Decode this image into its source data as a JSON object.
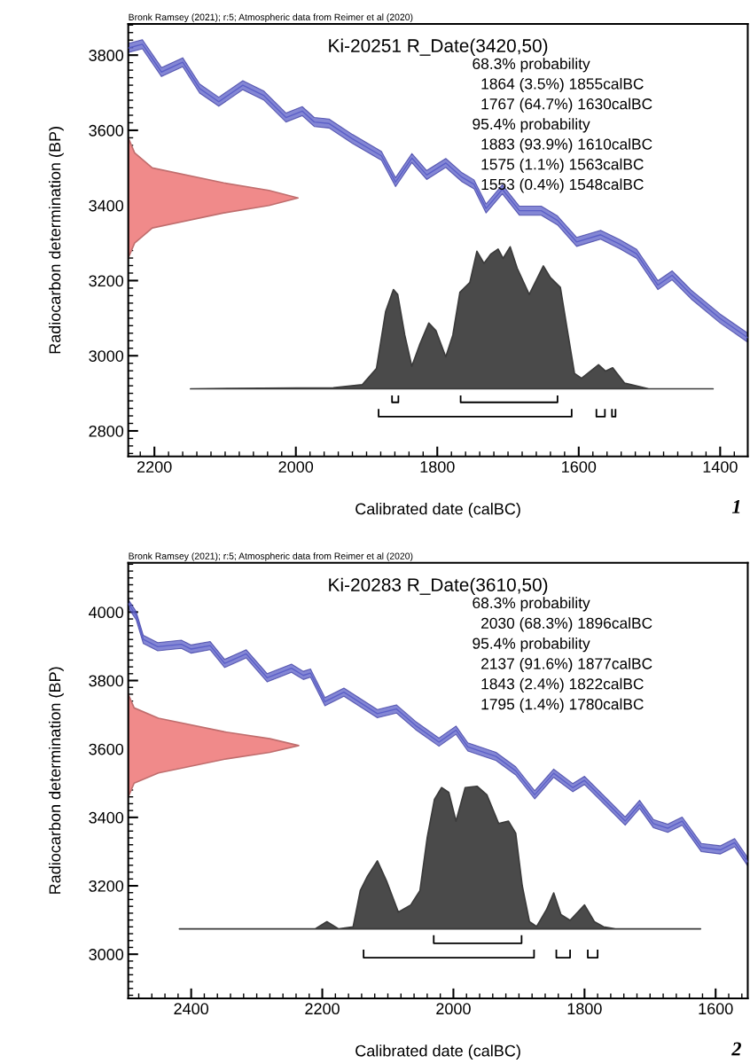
{
  "chart_data": [
    {
      "type": "line",
      "title": "Ki-20251 R_Date(3420,50)",
      "xlabel": "Calibrated date (calBC)",
      "ylabel": "Radiocarbon determination (BP)",
      "annotations": [
        "Bronk Ramsey (2021); r:5; Atmospheric data from Reimer et al (2020)",
        "68.3% probability",
        "  1864 (3.5%) 1855calBC",
        "  1767 (64.7%) 1630calBC",
        "95.4% probability",
        "  1883 (93.9%) 1610calBC",
        "  1575 (1.1%) 1563calBC",
        "  1553 (0.4%) 1548calBC",
        "1"
      ],
      "xlim": [
        2237,
        1361
      ],
      "xticks": [
        2200,
        2000,
        1800,
        1600,
        1400
      ],
      "ylim": [
        2732,
        3883
      ],
      "yticks": [
        2800,
        3000,
        3200,
        3400,
        3600,
        3800
      ],
      "grid": false,
      "legend": false,
      "series": [
        {
          "color": "#5b5fc7",
          "x": [
            2237,
            2217,
            2190,
            2160,
            2136,
            2109,
            2075,
            2045,
            2014,
            1991,
            1974,
            1953,
            1920,
            1879,
            1859,
            1836,
            1815,
            1788,
            1765,
            1748,
            1731,
            1708,
            1684,
            1653,
            1630,
            1603,
            1569,
            1542,
            1518,
            1488,
            1468,
            1441,
            1400,
            1361
          ],
          "values": [
            3819,
            3829,
            3755,
            3781,
            3711,
            3676,
            3720,
            3692,
            3634,
            3651,
            3622,
            3618,
            3577,
            3532,
            3462,
            3526,
            3481,
            3513,
            3475,
            3456,
            3392,
            3443,
            3386,
            3386,
            3360,
            3303,
            3322,
            3297,
            3271,
            3188,
            3214,
            3163,
            3099,
            3048
          ],
          "lower": [
            3807,
            3817,
            3743,
            3769,
            3699,
            3664,
            3708,
            3680,
            3622,
            3639,
            3610,
            3606,
            3565,
            3520,
            3450,
            3514,
            3469,
            3501,
            3463,
            3444,
            3380,
            3431,
            3374,
            3374,
            3348,
            3291,
            3310,
            3285,
            3259,
            3176,
            3202,
            3151,
            3087,
            3036
          ],
          "upper": [
            3831,
            3841,
            3767,
            3793,
            3723,
            3688,
            3732,
            3704,
            3646,
            3663,
            3634,
            3630,
            3589,
            3544,
            3474,
            3538,
            3493,
            3525,
            3487,
            3468,
            3404,
            3455,
            3398,
            3398,
            3372,
            3315,
            3334,
            3309,
            3283,
            3200,
            3226,
            3175,
            3111,
            3060
          ]
        },
        {
          "type": "area",
          "color": "#f08a8a",
          "values": [
            3580,
            3540,
            3500,
            3460,
            3440,
            3420,
            3400,
            3380,
            3340,
            3300,
            3260
          ],
          "x": [
            2237,
            2228,
            2203,
            2102,
            2038,
            1997,
            2038,
            2102,
            2203,
            2228,
            2237
          ]
        },
        {
          "type": "area",
          "color": "#4a4a4a",
          "x": [
            2149,
            1947,
            1906,
            1886,
            1873,
            1862,
            1856,
            1846,
            1836,
            1825,
            1812,
            1802,
            1788,
            1778,
            1768,
            1754,
            1744,
            1734,
            1724,
            1714,
            1707,
            1697,
            1687,
            1670,
            1650,
            1640,
            1626,
            1616,
            1606,
            1596,
            1572,
            1562,
            1552,
            1535,
            1501,
            1410
          ],
          "values": [
            2912,
            2915,
            2923,
            2966,
            3118,
            3176,
            3163,
            3055,
            2972,
            3029,
            3087,
            3067,
            2997,
            3055,
            3169,
            3195,
            3278,
            3246,
            3271,
            3284,
            3259,
            3290,
            3233,
            3163,
            3239,
            3208,
            3182,
            3067,
            2953,
            2940,
            2976,
            2959,
            2968,
            2927,
            2912,
            2912
          ]
        },
        {
          "type": "line",
          "color": "#000000",
          "x": [
            1864,
            1864,
            1855,
            1855
          ],
          "values": [
            2892,
            2876,
            2876,
            2892
          ]
        },
        {
          "type": "line",
          "color": "#000000",
          "x": [
            1767,
            1767,
            1630,
            1630
          ],
          "values": [
            2892,
            2876,
            2876,
            2892
          ]
        },
        {
          "type": "line",
          "color": "#000000",
          "x": [
            1883,
            1883,
            1610,
            1610
          ],
          "values": [
            2856,
            2838,
            2838,
            2856
          ]
        },
        {
          "type": "line",
          "color": "#000000",
          "x": [
            1575,
            1575,
            1563,
            1563
          ],
          "values": [
            2856,
            2838,
            2838,
            2856
          ]
        },
        {
          "type": "line",
          "color": "#000000",
          "x": [
            1553,
            1553,
            1548,
            1548
          ],
          "values": [
            2856,
            2838,
            2838,
            2856
          ]
        }
      ]
    },
    {
      "type": "line",
      "title": "Ki-20283 R_Date(3610,50)",
      "xlabel": "Calibrated date (calBC)",
      "ylabel": "Radiocarbon determination (BP)",
      "annotations": [
        "Bronk Ramsey (2021); r:5; Atmospheric data from Reimer et al (2020)",
        "68.3% probability",
        "  2030 (68.3%) 1896calBC",
        "95.4% probability",
        "  2137 (91.6%) 1877calBC",
        "  1843 (2.4%) 1822calBC",
        "  1795 (1.4%) 1780calBC",
        "2"
      ],
      "xlim": [
        2496,
        1551
      ],
      "xticks": [
        2400,
        2200,
        2000,
        1800,
        1600
      ],
      "ylim": [
        2871,
        4144
      ],
      "yticks": [
        3000,
        3200,
        3400,
        3600,
        3800,
        4000
      ],
      "grid": false,
      "legend": false,
      "series": [
        {
          "color": "#5b5fc7",
          "x": [
            2496,
            2484,
            2473,
            2451,
            2415,
            2400,
            2371,
            2349,
            2316,
            2284,
            2247,
            2229,
            2218,
            2196,
            2167,
            2116,
            2087,
            2058,
            2022,
            1996,
            1978,
            1935,
            1905,
            1876,
            1847,
            1818,
            1800,
            1767,
            1738,
            1716,
            1695,
            1673,
            1651,
            1622,
            1593,
            1571,
            1551
          ],
          "values": [
            4025,
            3990,
            3920,
            3899,
            3906,
            3892,
            3902,
            3850,
            3878,
            3808,
            3836,
            3815,
            3822,
            3738,
            3766,
            3703,
            3717,
            3669,
            3620,
            3655,
            3606,
            3578,
            3536,
            3466,
            3529,
            3487,
            3508,
            3445,
            3389,
            3438,
            3382,
            3368,
            3389,
            3312,
            3305,
            3326,
            3270
          ],
          "lower": [
            4013,
            3978,
            3908,
            3887,
            3894,
            3880,
            3890,
            3838,
            3866,
            3796,
            3824,
            3803,
            3810,
            3726,
            3754,
            3691,
            3705,
            3657,
            3608,
            3643,
            3594,
            3566,
            3524,
            3454,
            3517,
            3475,
            3496,
            3433,
            3377,
            3426,
            3370,
            3356,
            3377,
            3300,
            3293,
            3314,
            3258
          ],
          "upper": [
            4037,
            4002,
            3932,
            3911,
            3918,
            3904,
            3914,
            3862,
            3890,
            3820,
            3848,
            3827,
            3834,
            3750,
            3778,
            3715,
            3729,
            3681,
            3632,
            3667,
            3618,
            3590,
            3548,
            3478,
            3541,
            3499,
            3520,
            3457,
            3401,
            3450,
            3394,
            3380,
            3401,
            3324,
            3317,
            3338,
            3282
          ]
        },
        {
          "type": "area",
          "color": "#f08a8a",
          "values": [
            3760,
            3720,
            3690,
            3650,
            3630,
            3610,
            3590,
            3570,
            3530,
            3500,
            3460
          ],
          "x": [
            2496,
            2487,
            2450,
            2349,
            2280,
            2236,
            2280,
            2349,
            2450,
            2487,
            2496
          ]
        },
        {
          "type": "area",
          "color": "#4a4a4a",
          "x": [
            2418,
            2211,
            2193,
            2175,
            2153,
            2142,
            2131,
            2116,
            2102,
            2084,
            2065,
            2051,
            2040,
            2029,
            2018,
            2007,
            1996,
            1989,
            1982,
            1964,
            1949,
            1931,
            1916,
            1905,
            1895,
            1884,
            1873,
            1858,
            1847,
            1836,
            1822,
            1800,
            1785,
            1771,
            1753,
            1623
          ],
          "values": [
            3074,
            3074,
            3095,
            3074,
            3080,
            3186,
            3228,
            3273,
            3214,
            3123,
            3144,
            3186,
            3340,
            3452,
            3487,
            3473,
            3389,
            3438,
            3487,
            3491,
            3466,
            3382,
            3389,
            3354,
            3200,
            3095,
            3081,
            3130,
            3179,
            3116,
            3099,
            3144,
            3095,
            3080,
            3074,
            3074
          ]
        },
        {
          "type": "line",
          "color": "#000000",
          "x": [
            2030,
            2030,
            1896,
            1896
          ],
          "values": [
            3053,
            3032,
            3032,
            3053
          ]
        },
        {
          "type": "line",
          "color": "#000000",
          "x": [
            2137,
            2137,
            1877,
            1877
          ],
          "values": [
            3011,
            2990,
            2990,
            3011
          ]
        },
        {
          "type": "line",
          "color": "#000000",
          "x": [
            1843,
            1843,
            1822,
            1822
          ],
          "values": [
            3011,
            2990,
            2990,
            3011
          ]
        },
        {
          "type": "line",
          "color": "#000000",
          "x": [
            1795,
            1795,
            1780,
            1780
          ],
          "values": [
            3011,
            2990,
            2990,
            3011
          ]
        }
      ]
    }
  ]
}
